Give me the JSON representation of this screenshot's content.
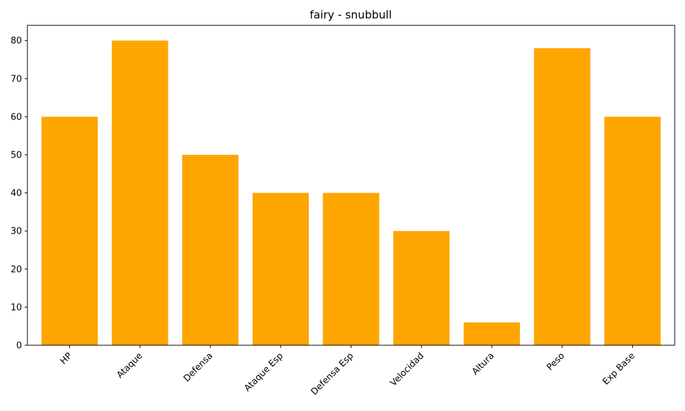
{
  "chart_data": {
    "type": "bar",
    "title": "fairy - snubbull",
    "xlabel": "",
    "ylabel": "",
    "categories": [
      "HP",
      "Ataque",
      "Defensa",
      "Ataque Esp",
      "Defensa Esp",
      "Velocidad",
      "Altura",
      "Peso",
      "Exp Base"
    ],
    "values": [
      60,
      80,
      50,
      40,
      40,
      30,
      6,
      78,
      60
    ],
    "ylim": [
      0,
      84
    ],
    "yticks": [
      0,
      10,
      20,
      30,
      40,
      50,
      60,
      70,
      80
    ],
    "grid": false,
    "legend": "none",
    "bar_color": "#FFA500",
    "tick_label_rotation": "45"
  }
}
